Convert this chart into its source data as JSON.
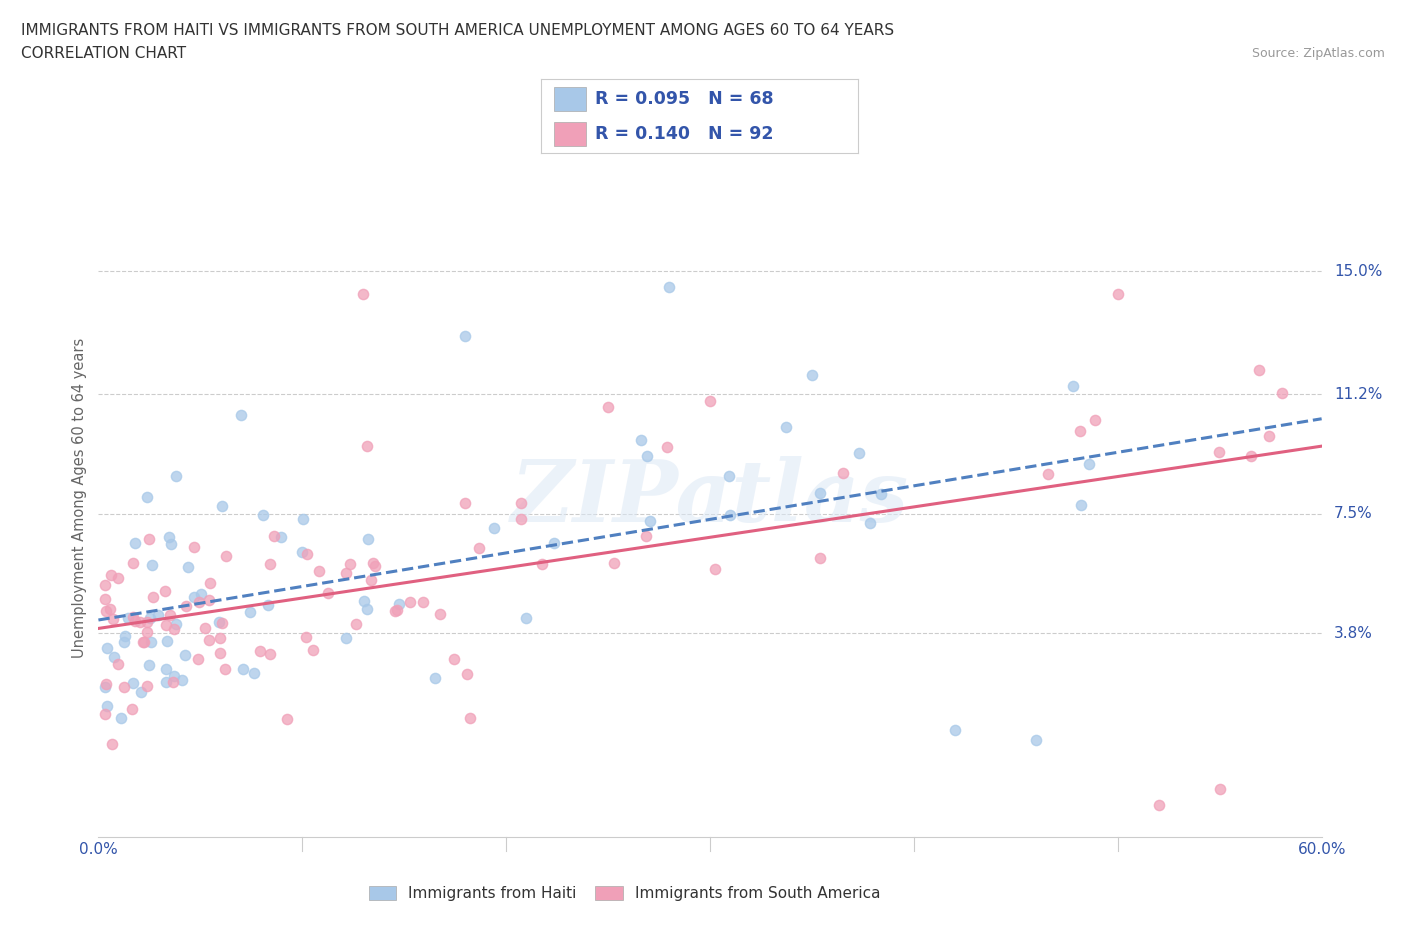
{
  "title_line1": "IMMIGRANTS FROM HAITI VS IMMIGRANTS FROM SOUTH AMERICA UNEMPLOYMENT AMONG AGES 60 TO 64 YEARS",
  "title_line2": "CORRELATION CHART",
  "source_text": "Source: ZipAtlas.com",
  "ylabel": "Unemployment Among Ages 60 to 64 years",
  "xlim": [
    0.0,
    0.6
  ],
  "ylim": [
    -0.025,
    0.185
  ],
  "yticks": [
    0.038,
    0.075,
    0.112,
    0.15
  ],
  "ytick_labels": [
    "3.8%",
    "7.5%",
    "11.2%",
    "15.0%"
  ],
  "xticks": [
    0.0,
    0.6
  ],
  "xtick_labels": [
    "0.0%",
    "60.0%"
  ],
  "haiti_color": "#a8c8e8",
  "sa_color": "#f0a0b8",
  "haiti_line_color": "#5080c0",
  "sa_line_color": "#e06080",
  "haiti_R": 0.095,
  "haiti_N": 68,
  "sa_R": 0.14,
  "sa_N": 92,
  "legend_R_color": "#3355aa",
  "background_color": "#ffffff",
  "watermark_text": "ZIPatlas",
  "grid_color": "#cccccc"
}
